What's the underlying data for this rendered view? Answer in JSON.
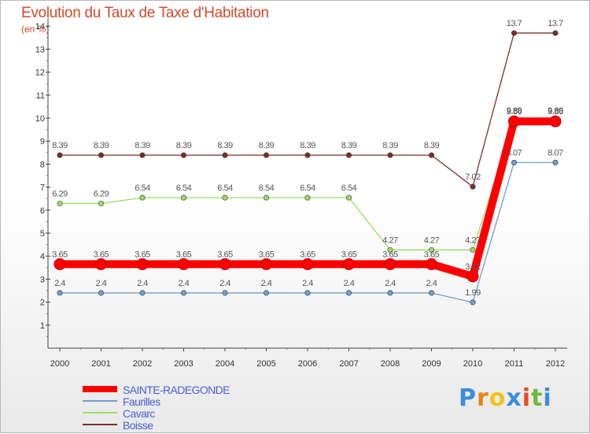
{
  "header": {
    "title": "Evolution du Taux de Taxe d'Habitation",
    "unit": "(en %)"
  },
  "logo": {
    "text": "Proxiti",
    "letters": [
      "P",
      "r",
      "o",
      "x",
      "i",
      "t",
      "i"
    ],
    "colors": [
      "#3b8ed8",
      "#e8831c",
      "#f1c21b",
      "#3b8ed8",
      "#ea4b1f",
      "#6dbb3a",
      "#3b8ed8"
    ]
  },
  "chart_data": {
    "type": "line",
    "title": "Evolution du Taux de Taxe d'Habitation",
    "ylabel": "(en %)",
    "xlabel": "",
    "x": [
      "2000",
      "2001",
      "2002",
      "2003",
      "2004",
      "2005",
      "2006",
      "2007",
      "2008",
      "2009",
      "2010",
      "2011",
      "2012"
    ],
    "ylim": [
      0,
      14
    ],
    "yticks": [
      "1",
      "2",
      "3",
      "4",
      "5",
      "6",
      "7",
      "8",
      "9",
      "10",
      "11",
      "12",
      "13",
      "14"
    ],
    "grid": false,
    "legend_position": "bottom-left",
    "series": [
      {
        "name": "SAINTE-RADEGONDE",
        "color": "#ff0000",
        "values": [
          3.65,
          3.65,
          3.65,
          3.65,
          3.65,
          3.65,
          3.65,
          3.65,
          3.65,
          3.65,
          3.12,
          9.86,
          9.86
        ],
        "labels": [
          "3.65",
          "3.65",
          "3.65",
          "3.65",
          "3.65",
          "3.65",
          "3.65",
          "3.65",
          "3.65",
          "3.65",
          "3.12",
          "9.86",
          "9.86"
        ],
        "emphasis": true
      },
      {
        "name": "Faurilles",
        "color": "#6f9fcf",
        "values": [
          2.4,
          2.4,
          2.4,
          2.4,
          2.4,
          2.4,
          2.4,
          2.4,
          2.4,
          2.4,
          1.99,
          8.07,
          8.07
        ],
        "labels": [
          "2.4",
          "2.4",
          "2.4",
          "2.4",
          "2.4",
          "2.4",
          "2.4",
          "2.4",
          "2.4",
          "2.4",
          "1.99",
          "8.07",
          "8.07"
        ]
      },
      {
        "name": "Cavarc",
        "color": "#99dd66",
        "values": [
          6.29,
          6.29,
          6.54,
          6.54,
          6.54,
          6.54,
          6.54,
          6.54,
          4.27,
          4.27,
          4.27,
          9.89,
          9.89
        ],
        "labels": [
          "6.29",
          "6.29",
          "6.54",
          "6.54",
          "6.54",
          "6.54",
          "6.54",
          "6.54",
          "4.27",
          "4.27",
          "4.27",
          "9.89",
          "9.89"
        ]
      },
      {
        "name": "Boisse",
        "color": "#7a2e2e",
        "values": [
          8.39,
          8.39,
          8.39,
          8.39,
          8.39,
          8.39,
          8.39,
          8.39,
          8.39,
          8.39,
          7.02,
          13.7,
          13.7
        ],
        "labels": [
          "8.39",
          "8.39",
          "8.39",
          "8.39",
          "8.39",
          "8.39",
          "8.39",
          "8.39",
          "8.39",
          "8.39",
          "7.02",
          "13.7",
          "13.7"
        ]
      }
    ]
  }
}
